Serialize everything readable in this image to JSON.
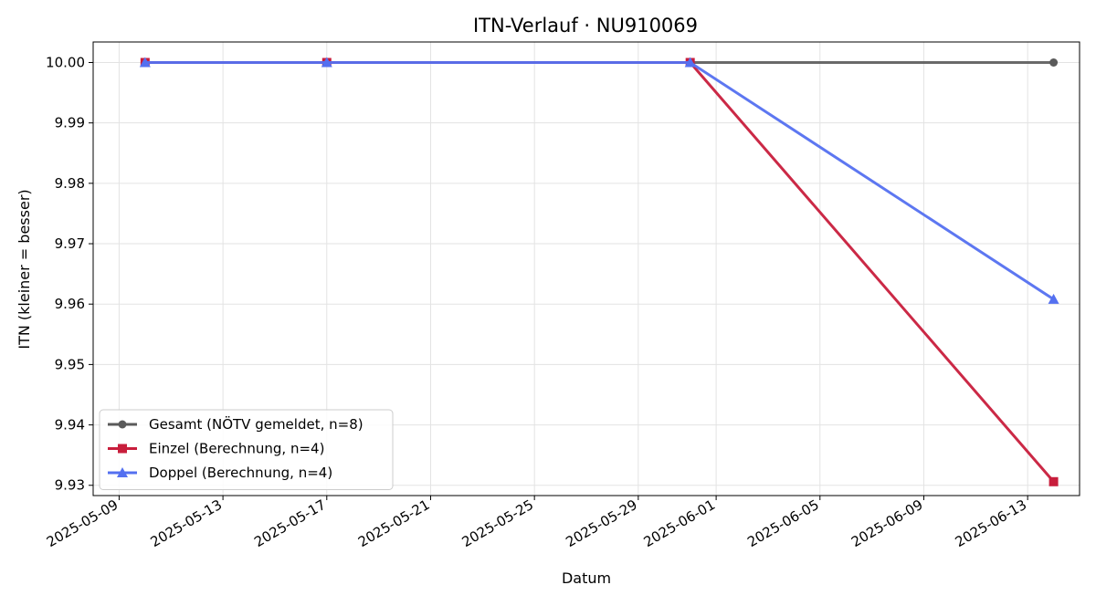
{
  "chart_data": {
    "type": "line",
    "title": "ITN-Verlauf · NU910069",
    "xlabel": "Datum",
    "ylabel": "ITN  (kleiner = besser)",
    "x_type": "date",
    "xlim": [
      "2025-05-08",
      "2025-06-15"
    ],
    "ylim": [
      9.9283,
      10.0034
    ],
    "x_ticks": [
      "2025-05-09",
      "2025-05-13",
      "2025-05-17",
      "2025-05-21",
      "2025-05-25",
      "2025-05-29",
      "2025-06-01",
      "2025-06-05",
      "2025-06-09",
      "2025-06-13"
    ],
    "y_ticks": [
      9.93,
      9.94,
      9.95,
      9.96,
      9.97,
      9.98,
      9.99,
      10.0
    ],
    "y_tick_labels": [
      "9.93",
      "9.94",
      "9.95",
      "9.96",
      "9.97",
      "9.98",
      "9.99",
      "10.00"
    ],
    "grid": true,
    "legend_position": "lower-left",
    "series": [
      {
        "name": "Gesamt (NÖTV gemeldet, n=8)",
        "color": "#5a5a5a",
        "marker": "circle",
        "x": [
          "2025-05-10",
          "2025-05-31",
          "2025-06-14"
        ],
        "y": [
          10.0,
          10.0,
          10.0
        ]
      },
      {
        "name": "Einzel (Berechnung, n=4)",
        "color": "#c81e3c",
        "marker": "square",
        "x": [
          "2025-05-10",
          "2025-05-17",
          "2025-05-31",
          "2025-06-14"
        ],
        "y": [
          10.0,
          10.0,
          10.0,
          9.9306
        ]
      },
      {
        "name": "Doppel (Berechnung, n=4)",
        "color": "#5470f0",
        "marker": "triangle",
        "x": [
          "2025-05-10",
          "2025-05-17",
          "2025-05-31",
          "2025-06-14"
        ],
        "y": [
          10.0,
          10.0,
          10.0,
          9.9608
        ]
      }
    ]
  }
}
